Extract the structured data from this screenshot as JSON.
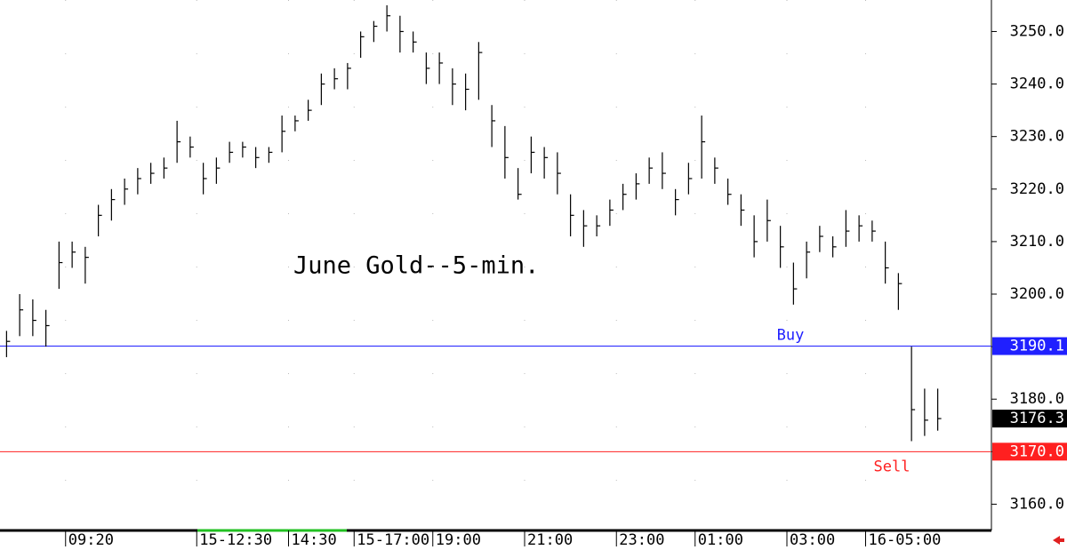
{
  "chart_data": {
    "type": "ohlc",
    "title": "June Gold--5-min.",
    "categories": [
      null,
      null,
      null,
      null,
      null,
      "09:20",
      null,
      null,
      null,
      null,
      null,
      null,
      null,
      null,
      null,
      "15-12:30",
      null,
      null,
      null,
      null,
      null,
      null,
      "14:30",
      null,
      null,
      null,
      null,
      "15-17:00",
      null,
      null,
      null,
      null,
      null,
      "19:00",
      null,
      null,
      null,
      null,
      null,
      null,
      "21:00",
      null,
      null,
      null,
      null,
      null,
      null,
      "23:00",
      null,
      null,
      null,
      null,
      null,
      "01:00",
      null,
      null,
      null,
      null,
      null,
      null,
      "03:00",
      null,
      null,
      null,
      null,
      null,
      "16-05:00",
      null,
      null,
      null,
      null,
      null
    ],
    "high": [
      3193,
      3200,
      3199,
      3197,
      3210,
      3210,
      3209,
      3217,
      3220,
      3222,
      3224,
      3225,
      3226,
      3233,
      3230,
      3225,
      3226,
      3229,
      3229,
      3228,
      3228,
      3234,
      3234,
      3237,
      3242,
      3243,
      3244,
      3250,
      3252,
      3255,
      3253,
      3250,
      3246,
      3246,
      3243,
      3242,
      3248,
      3236,
      3232,
      3224,
      3230,
      3228,
      3227,
      3219,
      3216,
      3215,
      3218,
      3221,
      3223,
      3226,
      3227,
      3220,
      3225,
      3234,
      3226,
      3222,
      3219,
      3215,
      3218,
      3213,
      3206,
      3210,
      3213,
      3211,
      3216,
      3215,
      3214,
      3210,
      3204,
      3190,
      3182,
      3182
    ],
    "low": [
      3188,
      3192,
      3192,
      3190,
      3201,
      3205,
      3202,
      3211,
      3214,
      3217,
      3219,
      3221,
      3222,
      3225,
      3226,
      3219,
      3221,
      3225,
      3226,
      3224,
      3225,
      3227,
      3231,
      3233,
      3236,
      3239,
      3239,
      3245,
      3248,
      3250,
      3246,
      3246,
      3240,
      3240,
      3236,
      3235,
      3237,
      3228,
      3222,
      3218,
      3223,
      3222,
      3219,
      3211,
      3209,
      3211,
      3213,
      3216,
      3218,
      3221,
      3220,
      3215,
      3219,
      3222,
      3221,
      3217,
      3213,
      3207,
      3210,
      3205,
      3198,
      3203,
      3208,
      3207,
      3209,
      3210,
      3210,
      3202,
      3197,
      3172,
      3173,
      3174
    ],
    "close": [
      3191,
      3197,
      3195,
      3194,
      3206,
      3208,
      3207,
      3215,
      3218,
      3220,
      3222,
      3223,
      3224,
      3229,
      3228,
      3222,
      3224,
      3227,
      3228,
      3226,
      3227,
      3231,
      3233,
      3235,
      3240,
      3241,
      3243,
      3249,
      3251,
      3253,
      3250,
      3248,
      3243,
      3244,
      3240,
      3239,
      3246,
      3233,
      3226,
      3219,
      3227,
      3226,
      3223,
      3215,
      3213,
      3213,
      3216,
      3219,
      3221,
      3224,
      3223,
      3218,
      3222,
      3229,
      3224,
      3219,
      3216,
      3210,
      3214,
      3209,
      3201,
      3208,
      3211,
      3209,
      3212,
      3213,
      3212,
      3205,
      3202,
      3178,
      3176,
      3176.3
    ],
    "color": "#000000",
    "ylim": [
      3155,
      3256
    ],
    "yticks": [
      {
        "value": 3160,
        "label": "3160.0"
      },
      {
        "value": 3170,
        "label": "3170.0"
      },
      {
        "value": 3180,
        "label": "3180.0"
      },
      {
        "value": 3190,
        "label": "3190.0"
      },
      {
        "value": 3200,
        "label": "3200.0"
      },
      {
        "value": 3210,
        "label": "3210.0"
      },
      {
        "value": 3220,
        "label": "3220.0"
      },
      {
        "value": 3230,
        "label": "3230.0"
      },
      {
        "value": 3240,
        "label": "3240.0"
      },
      {
        "value": 3250,
        "label": "3250.0"
      }
    ],
    "levels": [
      {
        "name": "Buy",
        "value": 3190.1,
        "color": "#2020ff"
      },
      {
        "name": "Sell",
        "value": 3170,
        "value_label": "3170.0",
        "color": "#ff2020"
      }
    ],
    "last": 3176.3
  }
}
